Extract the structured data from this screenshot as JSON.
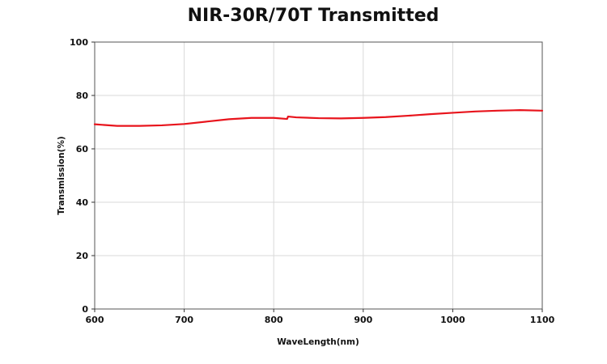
{
  "chart_data": {
    "type": "line",
    "title": "NIR-30R/70T Transmitted",
    "xlabel": "WaveLength(nm)",
    "ylabel": "Transmission(%)",
    "xlim": [
      600,
      1100
    ],
    "ylim": [
      0,
      100
    ],
    "xticks": [
      600,
      700,
      800,
      900,
      1000,
      1100
    ],
    "yticks": [
      0,
      20,
      40,
      60,
      80,
      100
    ],
    "xtick_labels": [
      "600",
      "700",
      "800",
      "900",
      "1000",
      "1100"
    ],
    "ytick_labels": [
      "0",
      "20",
      "40",
      "60",
      "80",
      "100"
    ],
    "grid": true,
    "legend": "none",
    "series": [
      {
        "color": "#e8141c",
        "x": [
          600,
          625,
          650,
          675,
          700,
          725,
          750,
          775,
          800,
          815,
          816,
          825,
          850,
          875,
          900,
          925,
          950,
          975,
          1000,
          1025,
          1050,
          1075,
          1100
        ],
        "y": [
          69.2,
          68.6,
          68.6,
          68.8,
          69.3,
          70.2,
          71.1,
          71.6,
          71.6,
          71.2,
          72.1,
          71.8,
          71.5,
          71.4,
          71.6,
          71.9,
          72.4,
          73.0,
          73.5,
          74.0,
          74.3,
          74.5,
          74.3
        ]
      }
    ]
  }
}
